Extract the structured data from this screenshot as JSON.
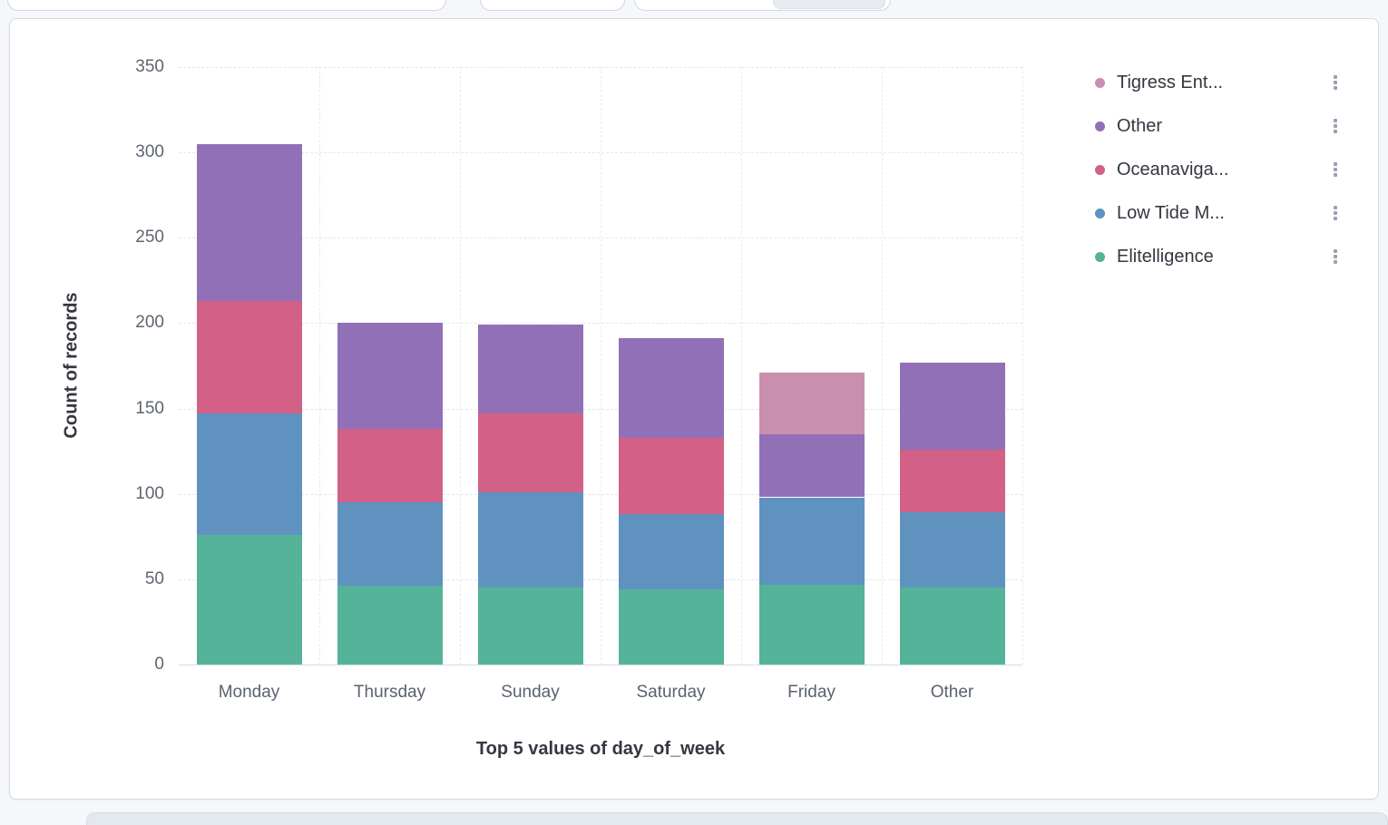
{
  "chart_data": {
    "type": "bar",
    "stacked": true,
    "orientation": "vertical",
    "xlabel": "Top 5 values of day_of_week",
    "ylabel": "Count of records",
    "ylim": [
      0,
      350
    ],
    "ytick_step": 50,
    "yticks": [
      0,
      50,
      100,
      150,
      200,
      250,
      300,
      350
    ],
    "categories": [
      "Monday",
      "Thursday",
      "Sunday",
      "Saturday",
      "Friday",
      "Other"
    ],
    "series": [
      {
        "name": "Elitelligence",
        "color": "#54b399",
        "values": [
          76,
          46,
          45,
          44,
          47,
          45
        ]
      },
      {
        "name": "Low Tide M...",
        "color": "#6092c0",
        "values": [
          71,
          49,
          56,
          44,
          51,
          44
        ]
      },
      {
        "name": "Oceanaviga...",
        "color": "#d36086",
        "values": [
          66,
          43,
          46,
          45,
          0,
          37
        ]
      },
      {
        "name": "Other",
        "color": "#9170b8",
        "values": [
          92,
          62,
          52,
          58,
          37,
          51
        ]
      },
      {
        "name": "Tigress Ent...",
        "color": "#ca8eae",
        "values": [
          0,
          0,
          0,
          0,
          36,
          0
        ]
      }
    ],
    "grid": {
      "horizontal": true,
      "vertical": true,
      "style": "dashed"
    },
    "legend": {
      "position": "right",
      "items": [
        {
          "label": "Tigress Ent...",
          "color": "#ca8eae"
        },
        {
          "label": "Other",
          "color": "#9170b8"
        },
        {
          "label": "Oceanaviga...",
          "color": "#d36086"
        },
        {
          "label": "Low Tide M...",
          "color": "#6092c0"
        },
        {
          "label": "Elitelligence",
          "color": "#54b399"
        }
      ]
    }
  }
}
